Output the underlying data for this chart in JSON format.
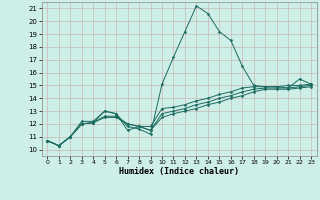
{
  "xlabel": "Humidex (Indice chaleur)",
  "bg_color": "#ceeee8",
  "grid_color": "#c8aaaa",
  "line_color": "#1a6b60",
  "xlim": [
    -0.5,
    23.5
  ],
  "ylim": [
    9.5,
    21.5
  ],
  "xticks": [
    0,
    1,
    2,
    3,
    4,
    5,
    6,
    7,
    8,
    9,
    10,
    11,
    12,
    13,
    14,
    15,
    16,
    17,
    18,
    19,
    20,
    21,
    22,
    23
  ],
  "yticks": [
    10,
    11,
    12,
    13,
    14,
    15,
    16,
    17,
    18,
    19,
    20,
    21
  ],
  "series": [
    [
      10.7,
      10.3,
      11.0,
      12.2,
      12.2,
      13.0,
      12.8,
      11.8,
      11.6,
      11.2,
      15.1,
      17.2,
      19.2,
      21.2,
      20.6,
      19.2,
      18.5,
      16.5,
      15.0,
      14.9,
      14.9,
      14.8,
      15.5,
      15.1
    ],
    [
      10.7,
      10.3,
      11.0,
      12.0,
      12.1,
      13.0,
      12.8,
      11.5,
      11.8,
      11.8,
      13.2,
      13.3,
      13.5,
      13.8,
      14.0,
      14.3,
      14.5,
      14.8,
      14.9,
      14.9,
      14.9,
      15.0,
      15.0,
      15.1
    ],
    [
      10.7,
      10.3,
      11.0,
      12.0,
      12.1,
      12.6,
      12.6,
      12.0,
      11.8,
      11.5,
      12.8,
      13.0,
      13.2,
      13.5,
      13.7,
      14.0,
      14.2,
      14.5,
      14.7,
      14.8,
      14.8,
      14.8,
      14.9,
      15.0
    ],
    [
      10.7,
      10.3,
      11.0,
      12.0,
      12.1,
      12.5,
      12.5,
      12.0,
      11.8,
      11.5,
      12.5,
      12.8,
      13.0,
      13.2,
      13.5,
      13.7,
      14.0,
      14.2,
      14.5,
      14.7,
      14.7,
      14.7,
      14.8,
      14.9
    ]
  ]
}
